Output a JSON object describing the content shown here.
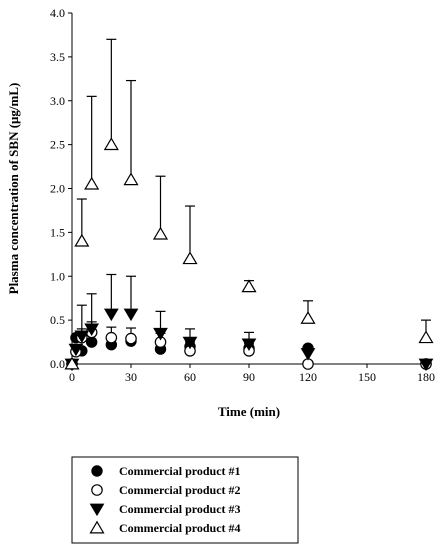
{
  "chart_data": {
    "type": "scatter",
    "xlabel": "Time (min)",
    "ylabel": "Plasma concentration of SBN (μg/mL)",
    "xlim": [
      0,
      180
    ],
    "ylim": [
      0,
      4.0
    ],
    "x_ticks": [
      0,
      30,
      60,
      90,
      120,
      150,
      180
    ],
    "y_ticks": [
      0.0,
      0.5,
      1.0,
      1.5,
      2.0,
      2.5,
      3.0,
      3.5,
      4.0
    ],
    "y_tick_labels": [
      "0.0",
      "0.5",
      "1.0",
      "1.5",
      "2.0",
      "2.5",
      "3.0",
      "3.5",
      "4.0"
    ],
    "grid": false,
    "legend_placement": "bottom",
    "series": [
      {
        "name": "Commercial product #1",
        "marker": "filled-circle",
        "x": [
          0,
          2,
          5,
          10,
          20,
          30,
          45,
          60,
          90,
          120,
          180
        ],
        "y": [
          0.0,
          0.3,
          0.15,
          0.25,
          0.22,
          0.26,
          0.17,
          0.2,
          0.18,
          0.18,
          0.0
        ],
        "err_upper": [
          0,
          0,
          0,
          0,
          0,
          0,
          0,
          0,
          0,
          0,
          0
        ]
      },
      {
        "name": "Commercial product #2",
        "marker": "open-circle",
        "x": [
          0,
          2,
          5,
          10,
          20,
          30,
          45,
          60,
          90,
          120,
          180
        ],
        "y": [
          0.0,
          0.14,
          0.3,
          0.36,
          0.3,
          0.29,
          0.25,
          0.15,
          0.15,
          0.0,
          0.0
        ],
        "err_upper": [
          0,
          0,
          0.1,
          0.12,
          0.12,
          0.12,
          0.1,
          0.1,
          0.08,
          0,
          0
        ]
      },
      {
        "name": "Commercial product #3",
        "marker": "filled-triangle-down",
        "x": [
          0,
          2,
          5,
          10,
          20,
          30,
          45,
          60,
          90,
          120,
          180
        ],
        "y": [
          0.0,
          0.17,
          0.32,
          0.4,
          0.57,
          0.57,
          0.35,
          0.25,
          0.23,
          0.12,
          0.0
        ],
        "err_upper": [
          0,
          0,
          0.35,
          0.4,
          0.45,
          0.43,
          0.25,
          0.15,
          0.13,
          0,
          0
        ]
      },
      {
        "name": "Commercial product #4",
        "marker": "open-triangle-up",
        "x": [
          0,
          5,
          10,
          20,
          30,
          45,
          60,
          90,
          120,
          180
        ],
        "y": [
          0.0,
          1.4,
          2.05,
          2.5,
          2.1,
          1.48,
          1.2,
          0.88,
          0.52,
          0.3
        ],
        "err_upper": [
          0,
          0.48,
          1.0,
          1.2,
          1.13,
          0.66,
          0.6,
          0.07,
          0.2,
          0.2
        ]
      }
    ]
  }
}
